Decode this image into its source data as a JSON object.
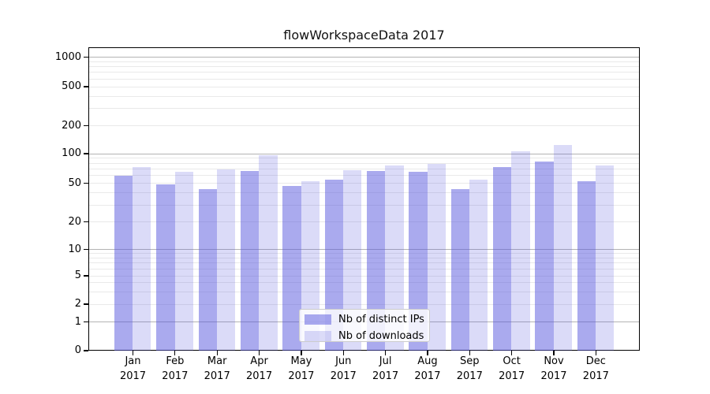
{
  "title": "flowWorkspaceData 2017",
  "chart_data": {
    "type": "bar",
    "title": "flowWorkspaceData 2017",
    "categories": [
      "Jan",
      "Feb",
      "Mar",
      "Apr",
      "May",
      "Jun",
      "Jul",
      "Aug",
      "Sep",
      "Oct",
      "Nov",
      "Dec"
    ],
    "year_label": "2017",
    "series": [
      {
        "name": "Nb of distinct IPs",
        "key": "distinct-ips",
        "values": [
          59,
          48,
          43,
          66,
          47,
          54,
          66,
          65,
          43,
          72,
          82,
          52
        ]
      },
      {
        "name": "Nb of downloads",
        "key": "downloads",
        "values": [
          73,
          65,
          69,
          96,
          52,
          67,
          76,
          78,
          54,
          105,
          123,
          75
        ]
      }
    ],
    "yscale": "symlog",
    "yticks": [
      0,
      1,
      2,
      5,
      10,
      20,
      50,
      100,
      200,
      500,
      1000
    ],
    "ylim": [
      0,
      1300
    ],
    "xlabel": "",
    "ylabel": "",
    "grid": true,
    "legend_position": "lower center",
    "colors": {
      "bar_base": "#5555dd",
      "bar_ips_apparent": "#aaaaee",
      "bar_downloads_apparent": "#dcdcf8",
      "grid_major": "#b3b3b3",
      "grid_minor": "#e9e9e9",
      "axis": "#000000",
      "legend_border": "#cccccc"
    }
  }
}
